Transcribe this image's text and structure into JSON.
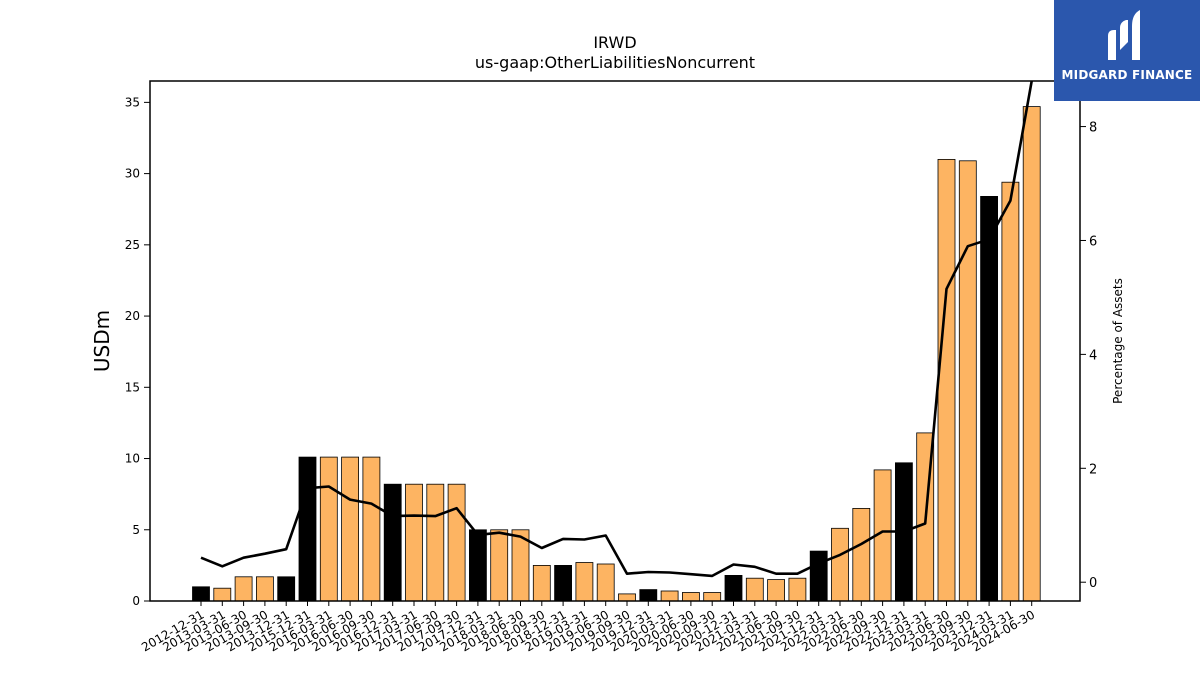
{
  "chart_data": {
    "type": "bar",
    "title": "IRWD",
    "subtitle": "us-gaap:OtherLiabilitiesNoncurrent",
    "ylabel": "USDm",
    "y2label": "Percentage of Assets",
    "ylim": [
      0,
      36.5
    ],
    "y2lim": [
      -0.33,
      8.8
    ],
    "yticks": [
      0,
      5,
      10,
      15,
      20,
      25,
      30,
      35
    ],
    "y2ticks": [
      0,
      2,
      4,
      6,
      8
    ],
    "grid": false,
    "categories": [
      "2012-12-31",
      "2013-03-31",
      "2013-06-30",
      "2013-09-30",
      "2013-12-31",
      "2015-12-31",
      "2016-03-31",
      "2016-06-30",
      "2016-09-30",
      "2016-12-31",
      "2017-03-31",
      "2017-06-30",
      "2017-09-30",
      "2017-12-31",
      "2018-03-31",
      "2018-06-30",
      "2018-09-30",
      "2018-12-31",
      "2019-03-31",
      "2019-06-30",
      "2019-09-30",
      "2019-12-31",
      "2020-03-31",
      "2020-06-30",
      "2020-09-30",
      "2020-12-31",
      "2021-03-31",
      "2021-06-30",
      "2021-09-30",
      "2021-12-31",
      "2022-03-31",
      "2022-06-30",
      "2022-09-30",
      "2022-12-31",
      "2023-03-31",
      "2023-06-30",
      "2023-09-30",
      "2023-12-31",
      "2024-03-31",
      "2024-06-30"
    ],
    "series": [
      {
        "type": "bar",
        "axis": "left",
        "values": [
          1.0,
          0.9,
          1.7,
          1.7,
          1.7,
          10.1,
          10.1,
          10.1,
          10.1,
          8.2,
          8.2,
          8.2,
          8.2,
          5.0,
          5.0,
          5.0,
          2.5,
          2.5,
          2.7,
          2.6,
          0.5,
          0.8,
          0.7,
          0.6,
          0.6,
          1.8,
          1.6,
          1.5,
          1.6,
          3.5,
          5.1,
          6.5,
          9.2,
          9.7,
          11.8,
          31.0,
          30.9,
          28.4,
          29.4,
          34.7
        ],
        "highlight": [
          true,
          false,
          false,
          false,
          true,
          true,
          false,
          false,
          false,
          true,
          false,
          false,
          false,
          true,
          false,
          false,
          false,
          true,
          false,
          false,
          false,
          true,
          false,
          false,
          false,
          true,
          false,
          false,
          false,
          true,
          false,
          false,
          false,
          true,
          false,
          false,
          false,
          true,
          false,
          false
        ]
      },
      {
        "type": "line",
        "axis": "right",
        "values": [
          0.43,
          0.28,
          0.43,
          0.5,
          0.58,
          1.65,
          1.68,
          1.45,
          1.38,
          1.16,
          1.17,
          1.16,
          1.3,
          0.83,
          0.87,
          0.8,
          0.6,
          0.76,
          0.75,
          0.82,
          0.15,
          0.18,
          0.17,
          0.14,
          0.11,
          0.31,
          0.27,
          0.15,
          0.15,
          0.33,
          0.48,
          0.67,
          0.89,
          0.89,
          1.03,
          5.15,
          5.9,
          6.02,
          6.7,
          8.8
        ]
      }
    ],
    "colors": {
      "bar": "#fdb462",
      "bar_highlight": "#000000",
      "bar_edge": "#000000",
      "line": "#000000"
    }
  },
  "logo": {
    "text": "MIDGARD FINANCE",
    "background": "#2b57ad"
  }
}
